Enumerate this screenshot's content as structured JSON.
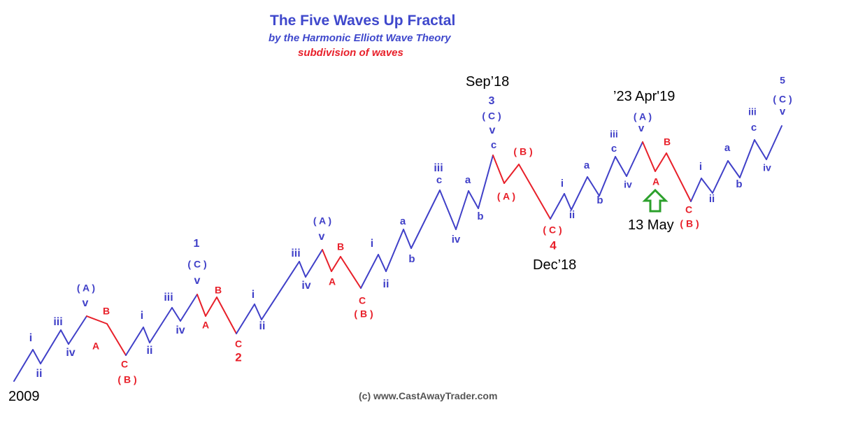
{
  "header": {
    "title": "The Five Waves Up Fractal",
    "subtitle": "by the Harmonic Elliott Wave Theory",
    "subtitle2": "subdivision of waves"
  },
  "dates": {
    "start": "2009",
    "sep18": "Sep’18",
    "dec18": "Dec’18",
    "apr19": "’23 Apr'19",
    "may13": "13 May"
  },
  "copyright": "(c) www.CastAwayTrader.com",
  "colors": {
    "blue": "#4040c8",
    "red": "#e8202a",
    "arrow": "#2ca02c"
  },
  "chart_data": {
    "type": "line",
    "blue_labels": [
      "i",
      "ii",
      "iii",
      "iv",
      "( A )",
      "v",
      "i",
      "ii",
      "iii",
      "iv",
      "1",
      "( C )",
      "v",
      "i",
      "ii",
      "iii",
      "iv",
      "( A )",
      "v",
      "i",
      "ii",
      "a",
      "b",
      "iii",
      "c",
      "iv",
      "a",
      "b",
      "3",
      "( C )",
      "v",
      "c",
      "i",
      "ii",
      "a",
      "b",
      "iii",
      "c",
      "iv",
      "( A )",
      "v",
      "i",
      "ii",
      "a",
      "b",
      "iii",
      "c",
      "iv",
      "5",
      "( C )",
      "v"
    ],
    "red_labels": [
      "B",
      "A",
      "C",
      "( B )",
      "B",
      "A",
      "C",
      "2",
      "B",
      "A",
      "C",
      "( B )",
      "( B )",
      "( A )",
      "( C )",
      "4",
      "B",
      "A",
      "C",
      "( B )"
    ]
  }
}
